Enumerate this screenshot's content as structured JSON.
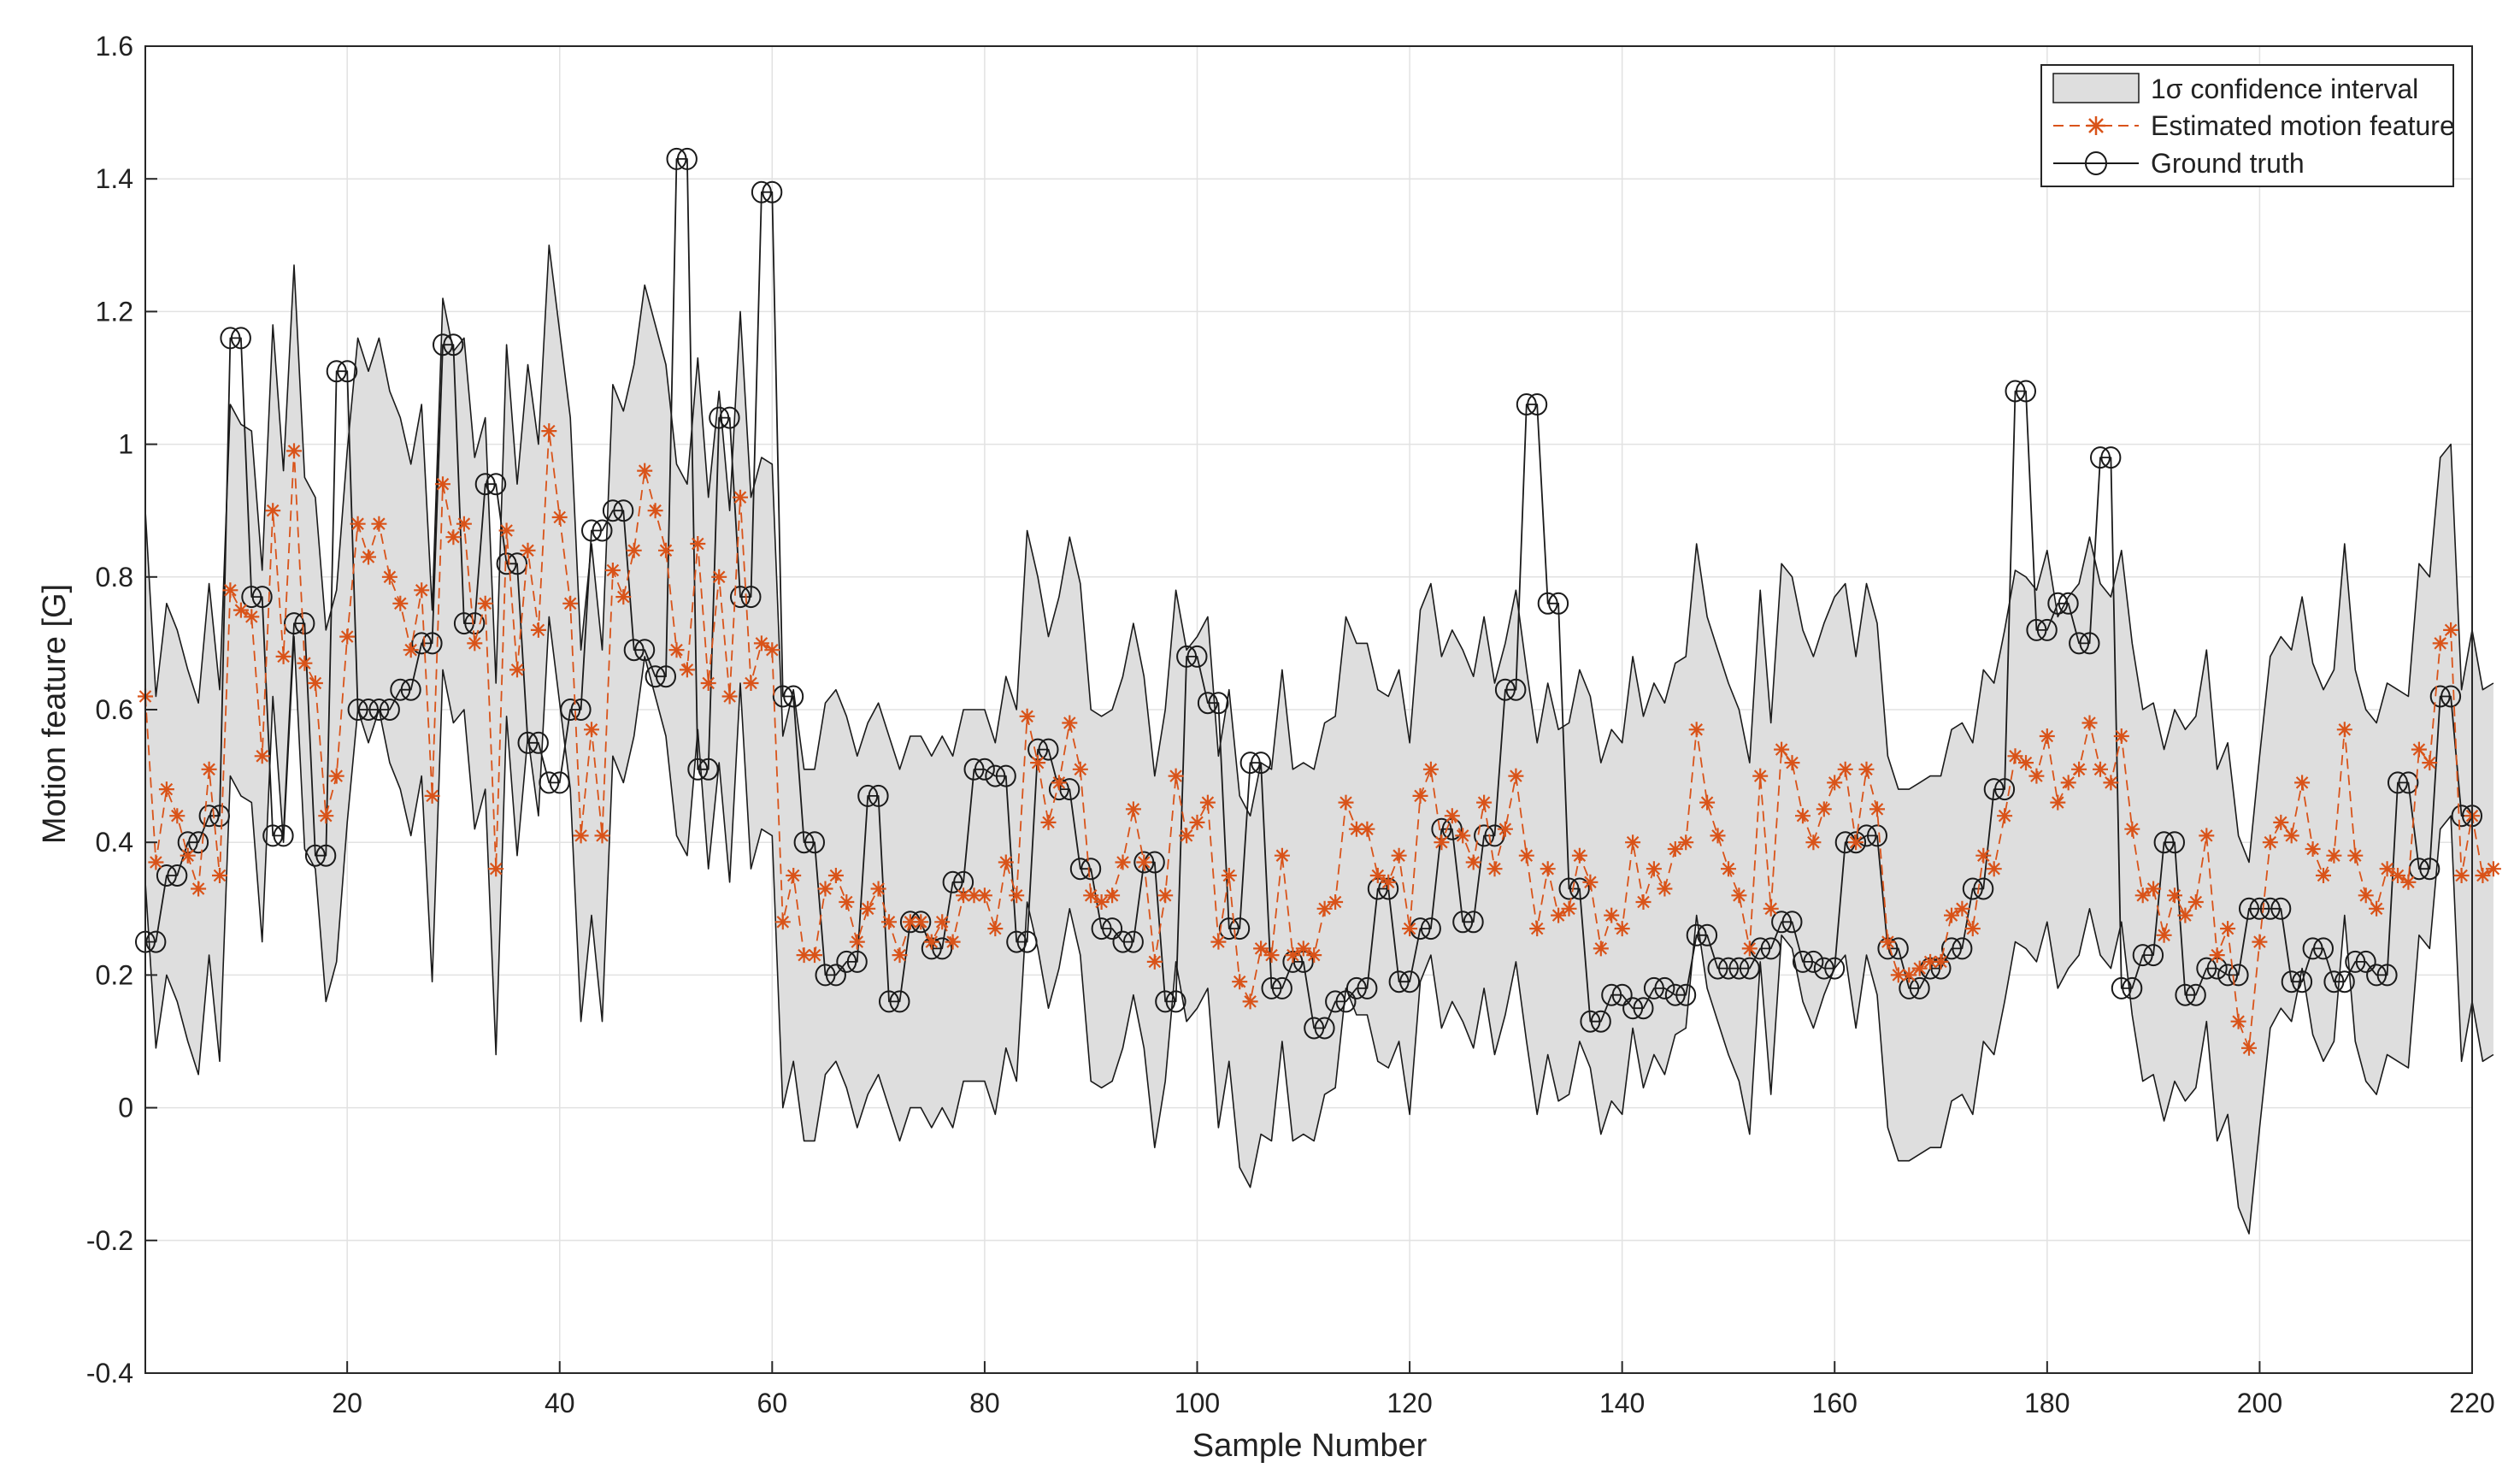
{
  "chart_data": {
    "type": "line",
    "title": "",
    "xlabel": "Sample Number",
    "ylabel": "Motion feature [G]",
    "xlim": [
      1,
      220
    ],
    "ylim": [
      -0.4,
      1.6
    ],
    "xticks": [
      20,
      40,
      60,
      80,
      100,
      120,
      140,
      160,
      180,
      200,
      220
    ],
    "yticks": [
      -0.4,
      -0.2,
      0,
      0.2,
      0.4,
      0.6,
      0.8,
      1,
      1.2,
      1.4,
      1.6
    ],
    "ytick_labels": [
      "-0.4",
      "-0.2",
      "0",
      "0.2",
      "0.4",
      "0.6",
      "0.8",
      "1",
      "1.2",
      "1.4",
      "1.6"
    ],
    "grid": true,
    "legend_position": "top-right",
    "legend": {
      "band": "1σ confidence interval",
      "estimated": "Estimated motion feature",
      "truth": "Ground truth"
    },
    "colors": {
      "band_fill": "#dedede",
      "band_edge": "#1a1a1a",
      "estimated": "#d95319",
      "truth": "#1a1a1a",
      "grid": "#e2e2e2",
      "axis": "#262626"
    },
    "series": [
      {
        "name": "Ground truth",
        "x_start": 1,
        "values": [
          0.25,
          0.25,
          0.35,
          0.35,
          0.4,
          0.4,
          0.44,
          0.44,
          1.16,
          1.16,
          0.77,
          0.77,
          0.41,
          0.41,
          0.73,
          0.73,
          0.38,
          0.38,
          1.11,
          1.11,
          0.6,
          0.6,
          0.6,
          0.6,
          0.63,
          0.63,
          0.7,
          0.7,
          1.15,
          1.15,
          0.73,
          0.73,
          0.94,
          0.94,
          0.82,
          0.82,
          0.55,
          0.55,
          0.49,
          0.49,
          0.6,
          0.6,
          0.87,
          0.87,
          0.9,
          0.9,
          0.69,
          0.69,
          0.65,
          0.65,
          1.43,
          1.43,
          0.51,
          0.51,
          1.04,
          1.04,
          0.77,
          0.77,
          1.38,
          1.38,
          0.62,
          0.62,
          0.4,
          0.4,
          0.2,
          0.2,
          0.22,
          0.22,
          0.47,
          0.47,
          0.16,
          0.16,
          0.28,
          0.28,
          0.24,
          0.24,
          0.34,
          0.34,
          0.51,
          0.51,
          0.5,
          0.5,
          0.25,
          0.25,
          0.54,
          0.54,
          0.48,
          0.48,
          0.36,
          0.36,
          0.27,
          0.27,
          0.25,
          0.25,
          0.37,
          0.37,
          0.16,
          0.16,
          0.68,
          0.68,
          0.61,
          0.61,
          0.27,
          0.27,
          0.52,
          0.52,
          0.18,
          0.18,
          0.22,
          0.22,
          0.12,
          0.12,
          0.16,
          0.16,
          0.18,
          0.18,
          0.33,
          0.33,
          0.19,
          0.19,
          0.27,
          0.27,
          0.42,
          0.42,
          0.28,
          0.28,
          0.41,
          0.41,
          0.63,
          0.63,
          1.06,
          1.06,
          0.76,
          0.76,
          0.33,
          0.33,
          0.13,
          0.13,
          0.17,
          0.17,
          0.15,
          0.15,
          0.18,
          0.18,
          0.17,
          0.17,
          0.26,
          0.26,
          0.21,
          0.21,
          0.21,
          0.21,
          0.24,
          0.24,
          0.28,
          0.28,
          0.22,
          0.22,
          0.21,
          0.21,
          0.4,
          0.4,
          0.41,
          0.41,
          0.24,
          0.24,
          0.18,
          0.18,
          0.21,
          0.21,
          0.24,
          0.24,
          0.33,
          0.33,
          0.48,
          0.48,
          1.08,
          1.08,
          0.72,
          0.72,
          0.76,
          0.76,
          0.7,
          0.7,
          0.98,
          0.98,
          0.18,
          0.18,
          0.23,
          0.23,
          0.4,
          0.4,
          0.17,
          0.17,
          0.21,
          0.21,
          0.2,
          0.2,
          0.3,
          0.3,
          0.3,
          0.3,
          0.19,
          0.19,
          0.24,
          0.24,
          0.19,
          0.19,
          0.22,
          0.22,
          0.2,
          0.2,
          0.49,
          0.49,
          0.36,
          0.36,
          0.62,
          0.62,
          0.44,
          0.44
        ]
      },
      {
        "name": "Estimated motion feature",
        "x_start": 1,
        "values": [
          0.62,
          0.37,
          0.48,
          0.44,
          0.38,
          0.33,
          0.51,
          0.35,
          0.78,
          0.75,
          0.74,
          0.53,
          0.9,
          0.68,
          0.99,
          0.67,
          0.64,
          0.44,
          0.5,
          0.71,
          0.88,
          0.83,
          0.88,
          0.8,
          0.76,
          0.69,
          0.78,
          0.47,
          0.94,
          0.86,
          0.88,
          0.7,
          0.76,
          0.36,
          0.87,
          0.66,
          0.84,
          0.72,
          1.02,
          0.89,
          0.76,
          0.41,
          0.57,
          0.41,
          0.81,
          0.77,
          0.84,
          0.96,
          0.9,
          0.84,
          0.69,
          0.66,
          0.85,
          0.64,
          0.8,
          0.62,
          0.92,
          0.64,
          0.7,
          0.69,
          0.28,
          0.35,
          0.23,
          0.23,
          0.33,
          0.35,
          0.31,
          0.25,
          0.3,
          0.33,
          0.28,
          0.23,
          0.28,
          0.28,
          0.25,
          0.28,
          0.25,
          0.32,
          0.32,
          0.32,
          0.27,
          0.37,
          0.32,
          0.59,
          0.52,
          0.43,
          0.49,
          0.58,
          0.51,
          0.32,
          0.31,
          0.32,
          0.37,
          0.45,
          0.37,
          0.22,
          0.32,
          0.5,
          0.41,
          0.43,
          0.46,
          0.25,
          0.35,
          0.19,
          0.16,
          0.24,
          0.23,
          0.38,
          0.23,
          0.24,
          0.23,
          0.3,
          0.31,
          0.46,
          0.42,
          0.42,
          0.35,
          0.34,
          0.38,
          0.27,
          0.47,
          0.51,
          0.4,
          0.44,
          0.41,
          0.37,
          0.46,
          0.36,
          0.42,
          0.5,
          0.38,
          0.27,
          0.36,
          0.29,
          0.3,
          0.38,
          0.34,
          0.24,
          0.29,
          0.27,
          0.4,
          0.31,
          0.36,
          0.33,
          0.39,
          0.4,
          0.57,
          0.46,
          0.41,
          0.36,
          0.32,
          0.24,
          0.5,
          0.3,
          0.54,
          0.52,
          0.44,
          0.4,
          0.45,
          0.49,
          0.51,
          0.4,
          0.51,
          0.45,
          0.25,
          0.2,
          0.2,
          0.21,
          0.22,
          0.22,
          0.29,
          0.3,
          0.27,
          0.38,
          0.36,
          0.44,
          0.53,
          0.52,
          0.5,
          0.56,
          0.46,
          0.49,
          0.51,
          0.58,
          0.51,
          0.49,
          0.56,
          0.42,
          0.32,
          0.33,
          0.26,
          0.32,
          0.29,
          0.31,
          0.41,
          0.23,
          0.27,
          0.13,
          0.09,
          0.25,
          0.4,
          0.43,
          0.41,
          0.49,
          0.39,
          0.35,
          0.38,
          0.57,
          0.38,
          0.32,
          0.3,
          0.36,
          0.35,
          0.34,
          0.54,
          0.52,
          0.7,
          0.72,
          0.35,
          0.44,
          0.35,
          0.36
        ]
      },
      {
        "name": "1σ confidence interval upper",
        "x_start": 1,
        "values": [
          0.9,
          0.62,
          0.76,
          0.72,
          0.66,
          0.61,
          0.79,
          0.63,
          1.06,
          1.03,
          1.02,
          0.81,
          1.18,
          0.96,
          1.27,
          0.95,
          0.92,
          0.72,
          0.78,
          0.99,
          1.16,
          1.11,
          1.16,
          1.08,
          1.04,
          0.97,
          1.06,
          0.75,
          1.22,
          1.14,
          1.16,
          0.98,
          1.04,
          0.64,
          1.15,
          0.94,
          1.12,
          1.0,
          1.3,
          1.17,
          1.04,
          0.69,
          0.85,
          0.69,
          1.09,
          1.05,
          1.12,
          1.24,
          1.18,
          1.12,
          0.97,
          0.94,
          1.13,
          0.92,
          1.08,
          0.9,
          1.2,
          0.92,
          0.98,
          0.97,
          0.56,
          0.63,
          0.51,
          0.51,
          0.61,
          0.63,
          0.59,
          0.53,
          0.58,
          0.61,
          0.56,
          0.51,
          0.56,
          0.56,
          0.53,
          0.56,
          0.53,
          0.6,
          0.6,
          0.6,
          0.55,
          0.65,
          0.6,
          0.87,
          0.8,
          0.71,
          0.77,
          0.86,
          0.79,
          0.6,
          0.59,
          0.6,
          0.65,
          0.73,
          0.65,
          0.5,
          0.6,
          0.78,
          0.69,
          0.71,
          0.74,
          0.53,
          0.63,
          0.47,
          0.44,
          0.52,
          0.51,
          0.66,
          0.51,
          0.52,
          0.51,
          0.58,
          0.59,
          0.74,
          0.7,
          0.7,
          0.63,
          0.62,
          0.66,
          0.55,
          0.75,
          0.79,
          0.68,
          0.72,
          0.69,
          0.65,
          0.74,
          0.64,
          0.7,
          0.78,
          0.66,
          0.55,
          0.64,
          0.57,
          0.58,
          0.66,
          0.62,
          0.52,
          0.57,
          0.55,
          0.68,
          0.59,
          0.64,
          0.61,
          0.67,
          0.68,
          0.85,
          0.74,
          0.69,
          0.64,
          0.6,
          0.52,
          0.78,
          0.58,
          0.82,
          0.8,
          0.72,
          0.68,
          0.73,
          0.77,
          0.79,
          0.68,
          0.79,
          0.73,
          0.53,
          0.48,
          0.48,
          0.49,
          0.5,
          0.5,
          0.57,
          0.58,
          0.55,
          0.66,
          0.64,
          0.72,
          0.81,
          0.8,
          0.78,
          0.84,
          0.74,
          0.77,
          0.79,
          0.86,
          0.79,
          0.77,
          0.84,
          0.7,
          0.6,
          0.61,
          0.54,
          0.6,
          0.57,
          0.59,
          0.69,
          0.51,
          0.55,
          0.41,
          0.37,
          0.53,
          0.68,
          0.71,
          0.69,
          0.77,
          0.67,
          0.63,
          0.66,
          0.85,
          0.66,
          0.6,
          0.58,
          0.64,
          0.63,
          0.62,
          0.82,
          0.8,
          0.98,
          1.0,
          0.63,
          0.72,
          0.63,
          0.64
        ]
      },
      {
        "name": "1σ confidence interval lower",
        "x_start": 1,
        "values": [
          0.34,
          0.09,
          0.2,
          0.16,
          0.1,
          0.05,
          0.23,
          0.07,
          0.5,
          0.47,
          0.46,
          0.25,
          0.62,
          0.4,
          0.71,
          0.39,
          0.36,
          0.16,
          0.22,
          0.43,
          0.6,
          0.55,
          0.6,
          0.52,
          0.48,
          0.41,
          0.5,
          0.19,
          0.66,
          0.58,
          0.6,
          0.42,
          0.48,
          0.08,
          0.59,
          0.38,
          0.56,
          0.44,
          0.74,
          0.61,
          0.48,
          0.13,
          0.29,
          0.13,
          0.53,
          0.49,
          0.56,
          0.68,
          0.62,
          0.56,
          0.41,
          0.38,
          0.57,
          0.36,
          0.52,
          0.34,
          0.64,
          0.36,
          0.42,
          0.41,
          0.0,
          0.07,
          -0.05,
          -0.05,
          0.05,
          0.07,
          0.03,
          -0.03,
          0.02,
          0.05,
          0.0,
          -0.05,
          0.0,
          0.0,
          -0.03,
          0.0,
          -0.03,
          0.04,
          0.04,
          0.04,
          -0.01,
          0.09,
          0.04,
          0.31,
          0.24,
          0.15,
          0.21,
          0.3,
          0.23,
          0.04,
          0.03,
          0.04,
          0.09,
          0.17,
          0.09,
          -0.06,
          0.04,
          0.22,
          0.13,
          0.15,
          0.18,
          -0.03,
          0.07,
          -0.09,
          -0.12,
          -0.04,
          -0.05,
          0.1,
          -0.05,
          -0.04,
          -0.05,
          0.02,
          0.03,
          0.18,
          0.14,
          0.14,
          0.07,
          0.06,
          0.1,
          -0.01,
          0.19,
          0.23,
          0.12,
          0.16,
          0.13,
          0.09,
          0.18,
          0.08,
          0.14,
          0.22,
          0.1,
          -0.01,
          0.08,
          0.01,
          0.02,
          0.1,
          0.06,
          -0.04,
          0.01,
          -0.01,
          0.12,
          0.03,
          0.08,
          0.05,
          0.11,
          0.12,
          0.29,
          0.18,
          0.13,
          0.08,
          0.04,
          -0.04,
          0.22,
          0.02,
          0.26,
          0.24,
          0.16,
          0.12,
          0.17,
          0.21,
          0.23,
          0.12,
          0.23,
          0.17,
          -0.03,
          -0.08,
          -0.08,
          -0.07,
          -0.06,
          -0.06,
          0.01,
          0.02,
          -0.01,
          0.1,
          0.08,
          0.16,
          0.25,
          0.24,
          0.22,
          0.28,
          0.18,
          0.21,
          0.23,
          0.3,
          0.23,
          0.21,
          0.28,
          0.14,
          0.04,
          0.05,
          -0.02,
          0.04,
          0.01,
          0.03,
          0.13,
          -0.05,
          -0.01,
          -0.15,
          -0.19,
          -0.03,
          0.12,
          0.15,
          0.13,
          0.21,
          0.11,
          0.07,
          0.1,
          0.29,
          0.1,
          0.04,
          0.02,
          0.08,
          0.07,
          0.06,
          0.26,
          0.24,
          0.42,
          0.44,
          0.07,
          0.16,
          0.07,
          0.08
        ]
      }
    ]
  }
}
